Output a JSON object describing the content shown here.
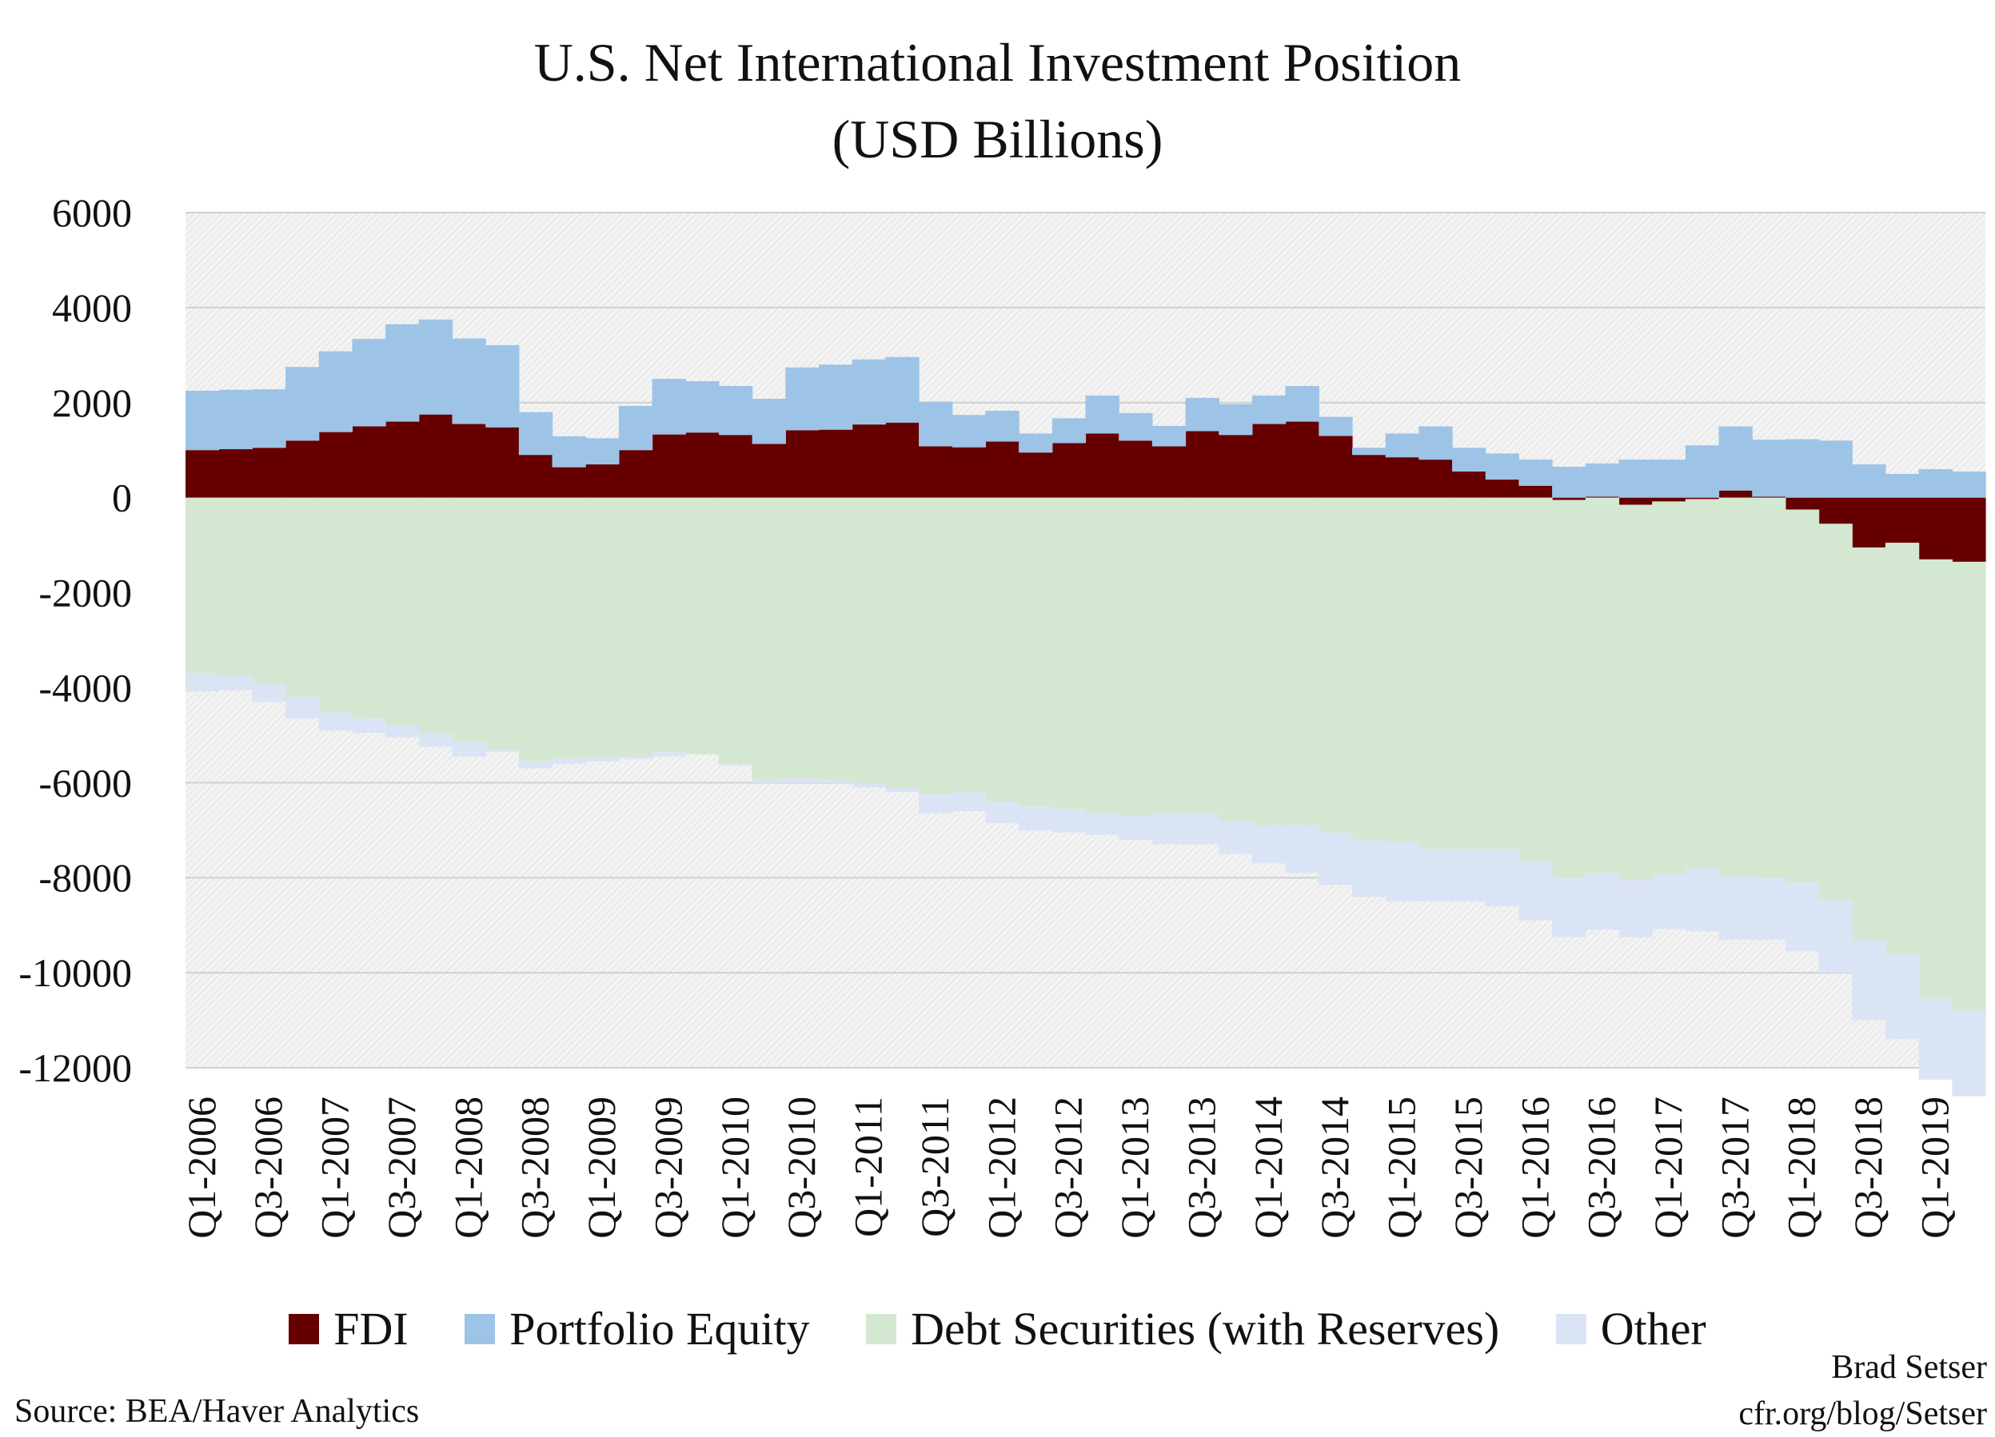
{
  "chart_data": {
    "type": "area",
    "title": "U.S. Net International Investment Position",
    "subtitle": "(USD Billions)",
    "xlabel": "",
    "ylabel": "",
    "ylim": [
      -12000,
      6000
    ],
    "yticks": [
      6000,
      4000,
      2000,
      0,
      -2000,
      -4000,
      -6000,
      -8000,
      -10000,
      -12000
    ],
    "grid": true,
    "legend_position": "bottom",
    "x": [
      "Q1-2006",
      "Q2-2006",
      "Q3-2006",
      "Q4-2006",
      "Q1-2007",
      "Q2-2007",
      "Q3-2007",
      "Q4-2007",
      "Q1-2008",
      "Q2-2008",
      "Q3-2008",
      "Q4-2008",
      "Q1-2009",
      "Q2-2009",
      "Q3-2009",
      "Q4-2009",
      "Q1-2010",
      "Q2-2010",
      "Q3-2010",
      "Q4-2010",
      "Q1-2011",
      "Q2-2011",
      "Q3-2011",
      "Q4-2011",
      "Q1-2012",
      "Q2-2012",
      "Q3-2012",
      "Q4-2012",
      "Q1-2013",
      "Q2-2013",
      "Q3-2013",
      "Q4-2013",
      "Q1-2014",
      "Q2-2014",
      "Q3-2014",
      "Q4-2014",
      "Q1-2015",
      "Q2-2015",
      "Q3-2015",
      "Q4-2015",
      "Q1-2016",
      "Q2-2016",
      "Q3-2016",
      "Q4-2016",
      "Q1-2017",
      "Q2-2017",
      "Q3-2017",
      "Q4-2017",
      "Q1-2018",
      "Q2-2018",
      "Q3-2018",
      "Q4-2018",
      "Q1-2019",
      "Q2-2019"
    ],
    "xtick_labels": [
      "Q1-2006",
      "Q3-2006",
      "Q1-2007",
      "Q3-2007",
      "Q1-2008",
      "Q3-2008",
      "Q1-2009",
      "Q3-2009",
      "Q1-2010",
      "Q3-2010",
      "Q1-2011",
      "Q3-2011",
      "Q1-2012",
      "Q3-2012",
      "Q1-2013",
      "Q3-2013",
      "Q1-2014",
      "Q3-2014",
      "Q1-2015",
      "Q3-2015",
      "Q1-2016",
      "Q3-2016",
      "Q1-2017",
      "Q3-2017",
      "Q1-2018",
      "Q3-2018",
      "Q1-2019"
    ],
    "series": [
      {
        "name": "FDI",
        "color": "#660000",
        "values": [
          1000,
          1020,
          1050,
          1200,
          1380,
          1500,
          1600,
          1750,
          1550,
          1480,
          900,
          640,
          700,
          1000,
          1330,
          1370,
          1320,
          1130,
          1420,
          1430,
          1540,
          1580,
          1080,
          1060,
          1180,
          950,
          1150,
          1350,
          1200,
          1080,
          1400,
          1320,
          1550,
          1600,
          1300,
          900,
          850,
          800,
          550,
          380,
          250,
          -50,
          20,
          -150,
          -80,
          -30,
          150,
          20,
          -250,
          -550,
          -1050,
          -950,
          -1300,
          -1350
        ]
      },
      {
        "name": "Portfolio Equity",
        "color": "#9dc3e6",
        "values": [
          1250,
          1250,
          1230,
          1550,
          1700,
          1840,
          2050,
          2000,
          1800,
          1730,
          900,
          650,
          550,
          930,
          1170,
          1080,
          1030,
          950,
          1320,
          1370,
          1370,
          1380,
          940,
          680,
          650,
          400,
          520,
          800,
          580,
          430,
          700,
          650,
          600,
          750,
          400,
          150,
          500,
          700,
          500,
          550,
          550,
          650,
          700,
          800,
          800,
          1100,
          1350,
          1200,
          1230,
          1200,
          700,
          500,
          600,
          550
        ]
      },
      {
        "name": "Debt Securities (with Reserves)",
        "color": "#d4e7d0",
        "values": [
          -3700,
          -3750,
          -3900,
          -4200,
          -4500,
          -4650,
          -4800,
          -4950,
          -5150,
          -5300,
          -5550,
          -5500,
          -5450,
          -5450,
          -5350,
          -5400,
          -5600,
          -5950,
          -5900,
          -5950,
          -6000,
          -6100,
          -6250,
          -6200,
          -6400,
          -6500,
          -6550,
          -6650,
          -6700,
          -6650,
          -6650,
          -6800,
          -6900,
          -6900,
          -7050,
          -7200,
          -7250,
          -7400,
          -7400,
          -7400,
          -7650,
          -7950,
          -7900,
          -7900,
          -7850,
          -7750,
          -7950,
          -8000,
          -7850,
          -7900,
          -8250,
          -8650,
          -9250,
          -9450
        ]
      },
      {
        "name": "Other",
        "color": "#dbe4f4",
        "values": [
          -380,
          -300,
          -400,
          -450,
          -400,
          -300,
          -250,
          -300,
          -300,
          -50,
          -150,
          -100,
          -100,
          -50,
          -100,
          0,
          -30,
          -50,
          -100,
          -50,
          -100,
          -100,
          -400,
          -400,
          -450,
          -500,
          -500,
          -450,
          -500,
          -650,
          -650,
          -700,
          -800,
          -1000,
          -1100,
          -1200,
          -1250,
          -1100,
          -1100,
          -1200,
          -1250,
          -1250,
          -1200,
          -1200,
          -1150,
          -1350,
          -1350,
          -1300,
          -1450,
          -1550,
          -1700,
          -1800,
          -1700,
          -1800
        ]
      }
    ]
  },
  "legend": {
    "items": [
      {
        "label": "FDI",
        "color": "#660000"
      },
      {
        "label": "Portfolio Equity",
        "color": "#9dc3e6"
      },
      {
        "label": "Debt Securities (with Reserves)",
        "color": "#d4e7d0"
      },
      {
        "label": "Other",
        "color": "#dbe4f4"
      }
    ]
  },
  "footer": {
    "source": "Source: BEA/Haver Analytics",
    "author": "Brad Setser",
    "site": "cfr.org/blog/Setser"
  }
}
